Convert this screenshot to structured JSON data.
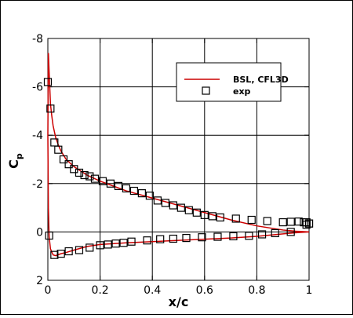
{
  "chart_data": {
    "type": "line",
    "xlabel": "x/c",
    "ylabel": "C",
    "ylabel_subscript": "p",
    "xlim": [
      0,
      1
    ],
    "ylim": [
      2,
      -8
    ],
    "y_inverted": true,
    "grid": true,
    "legend_placement": "top-right",
    "x_ticks": [
      0,
      0.2,
      0.4,
      0.6,
      0.8,
      1
    ],
    "x_tick_labels": [
      "0",
      "0.2",
      "0.4",
      "0.6",
      "0.8",
      "1"
    ],
    "y_ticks": [
      -8,
      -6,
      -4,
      -2,
      0,
      2
    ],
    "y_tick_labels": [
      "-8",
      "-6",
      "-4",
      "-2",
      "0",
      "2"
    ],
    "series": [
      {
        "name": "BSL, CFL3D",
        "kind": "line",
        "color": "#cc0000",
        "upper": {
          "x": [
            0,
            0.002,
            0.005,
            0.01,
            0.015,
            0.02,
            0.03,
            0.04,
            0.05,
            0.07,
            0.1,
            0.15,
            0.2,
            0.25,
            0.3,
            0.4,
            0.5,
            0.6,
            0.7,
            0.8,
            0.9,
            0.95,
            1.0
          ],
          "y": [
            -4.0,
            -7.4,
            -6.6,
            -5.3,
            -4.8,
            -4.4,
            -3.9,
            -3.6,
            -3.35,
            -3.0,
            -2.7,
            -2.35,
            -2.1,
            -1.9,
            -1.7,
            -1.4,
            -1.1,
            -0.8,
            -0.5,
            -0.25,
            -0.08,
            -0.03,
            0.0
          ]
        },
        "lower": {
          "x": [
            0,
            0.002,
            0.005,
            0.01,
            0.02,
            0.03,
            0.05,
            0.07,
            0.1,
            0.15,
            0.2,
            0.3,
            0.4,
            0.5,
            0.6,
            0.7,
            0.8,
            0.9,
            0.95,
            1.0
          ],
          "y": [
            -4.0,
            -1.0,
            0.2,
            0.7,
            0.95,
            0.98,
            0.9,
            0.85,
            0.75,
            0.6,
            0.52,
            0.45,
            0.4,
            0.35,
            0.3,
            0.25,
            0.18,
            0.08,
            0.03,
            0.0
          ]
        }
      },
      {
        "name": "exp",
        "kind": "markers",
        "marker": "square",
        "upper": {
          "x": [
            0.0,
            0.01,
            0.025,
            0.04,
            0.06,
            0.08,
            0.1,
            0.12,
            0.14,
            0.16,
            0.18,
            0.21,
            0.24,
            0.27,
            0.3,
            0.33,
            0.36,
            0.39,
            0.42,
            0.45,
            0.48,
            0.51,
            0.54,
            0.57,
            0.6,
            0.63,
            0.66,
            0.72,
            0.78,
            0.84,
            0.9,
            0.93,
            0.96,
            0.98,
            0.99,
            1.0
          ],
          "y": [
            -6.2,
            -5.1,
            -3.7,
            -3.4,
            -3.0,
            -2.8,
            -2.6,
            -2.45,
            -2.35,
            -2.3,
            -2.2,
            -2.1,
            -2.0,
            -1.9,
            -1.8,
            -1.7,
            -1.6,
            -1.5,
            -1.3,
            -1.2,
            -1.1,
            -1.0,
            -0.9,
            -0.8,
            -0.7,
            -0.65,
            -0.6,
            -0.55,
            -0.5,
            -0.45,
            -0.4,
            -0.42,
            -0.43,
            -0.4,
            -0.4,
            -0.35
          ]
        },
        "lower": {
          "x": [
            0.005,
            0.025,
            0.05,
            0.08,
            0.12,
            0.16,
            0.2,
            0.23,
            0.26,
            0.29,
            0.32,
            0.38,
            0.43,
            0.48,
            0.53,
            0.59,
            0.65,
            0.71,
            0.77,
            0.82,
            0.87,
            0.93,
            0.99,
            1.0
          ],
          "y": [
            0.15,
            0.95,
            0.9,
            0.8,
            0.75,
            0.65,
            0.55,
            0.52,
            0.48,
            0.45,
            0.4,
            0.35,
            0.3,
            0.28,
            0.25,
            0.22,
            0.2,
            0.18,
            0.16,
            0.1,
            0.05,
            0.0,
            -0.3,
            -0.35
          ]
        }
      }
    ]
  }
}
